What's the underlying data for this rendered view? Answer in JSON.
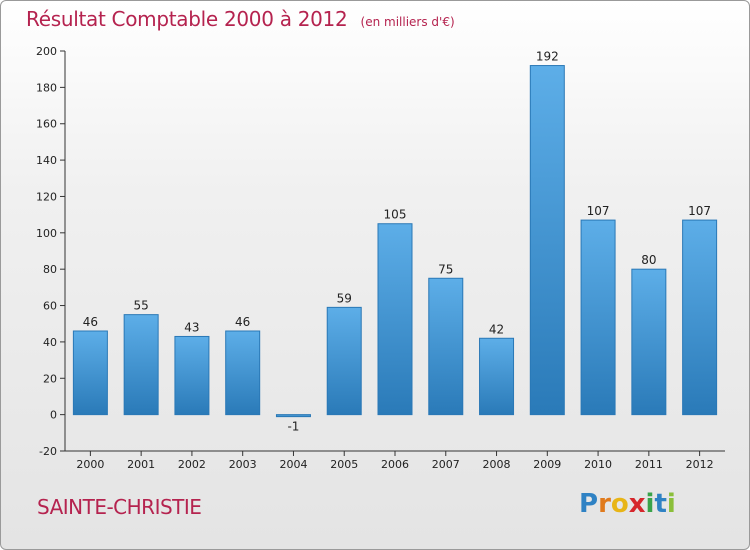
{
  "header": {
    "title": "Résultat Comptable 2000 à 2012",
    "subtitle": "(en milliers d'€)"
  },
  "town": "SAINTE-CHRISTIE",
  "logo": {
    "text": "Proxiti",
    "colors": [
      "#2f82c4",
      "#e07a1c",
      "#e8b516",
      "#d6262c",
      "#3aa34a",
      "#2f82c4",
      "#8bbf3a"
    ]
  },
  "colors": {
    "title": "#b5234f",
    "bar_light": "#5daee8",
    "bar_dark": "#2a7ab8"
  },
  "chart_data": {
    "type": "bar",
    "title": "Résultat Comptable 2000 à 2012",
    "subtitle": "(en milliers d'€)",
    "xlabel": "",
    "ylabel": "",
    "categories": [
      "2000",
      "2001",
      "2002",
      "2003",
      "2004",
      "2005",
      "2006",
      "2007",
      "2008",
      "2009",
      "2010",
      "2011",
      "2012"
    ],
    "values": [
      46,
      55,
      43,
      46,
      -1,
      59,
      105,
      75,
      42,
      192,
      107,
      80,
      107
    ],
    "value_labels": [
      "46",
      "55",
      "43",
      "46",
      "-1",
      "59",
      "105",
      "75",
      "42",
      "192",
      "107",
      "80",
      "107"
    ],
    "ylim": [
      -20,
      200
    ],
    "yticks": [
      -20,
      0,
      20,
      40,
      60,
      80,
      100,
      120,
      140,
      160,
      180,
      200
    ],
    "grid": false,
    "legend": "none"
  }
}
